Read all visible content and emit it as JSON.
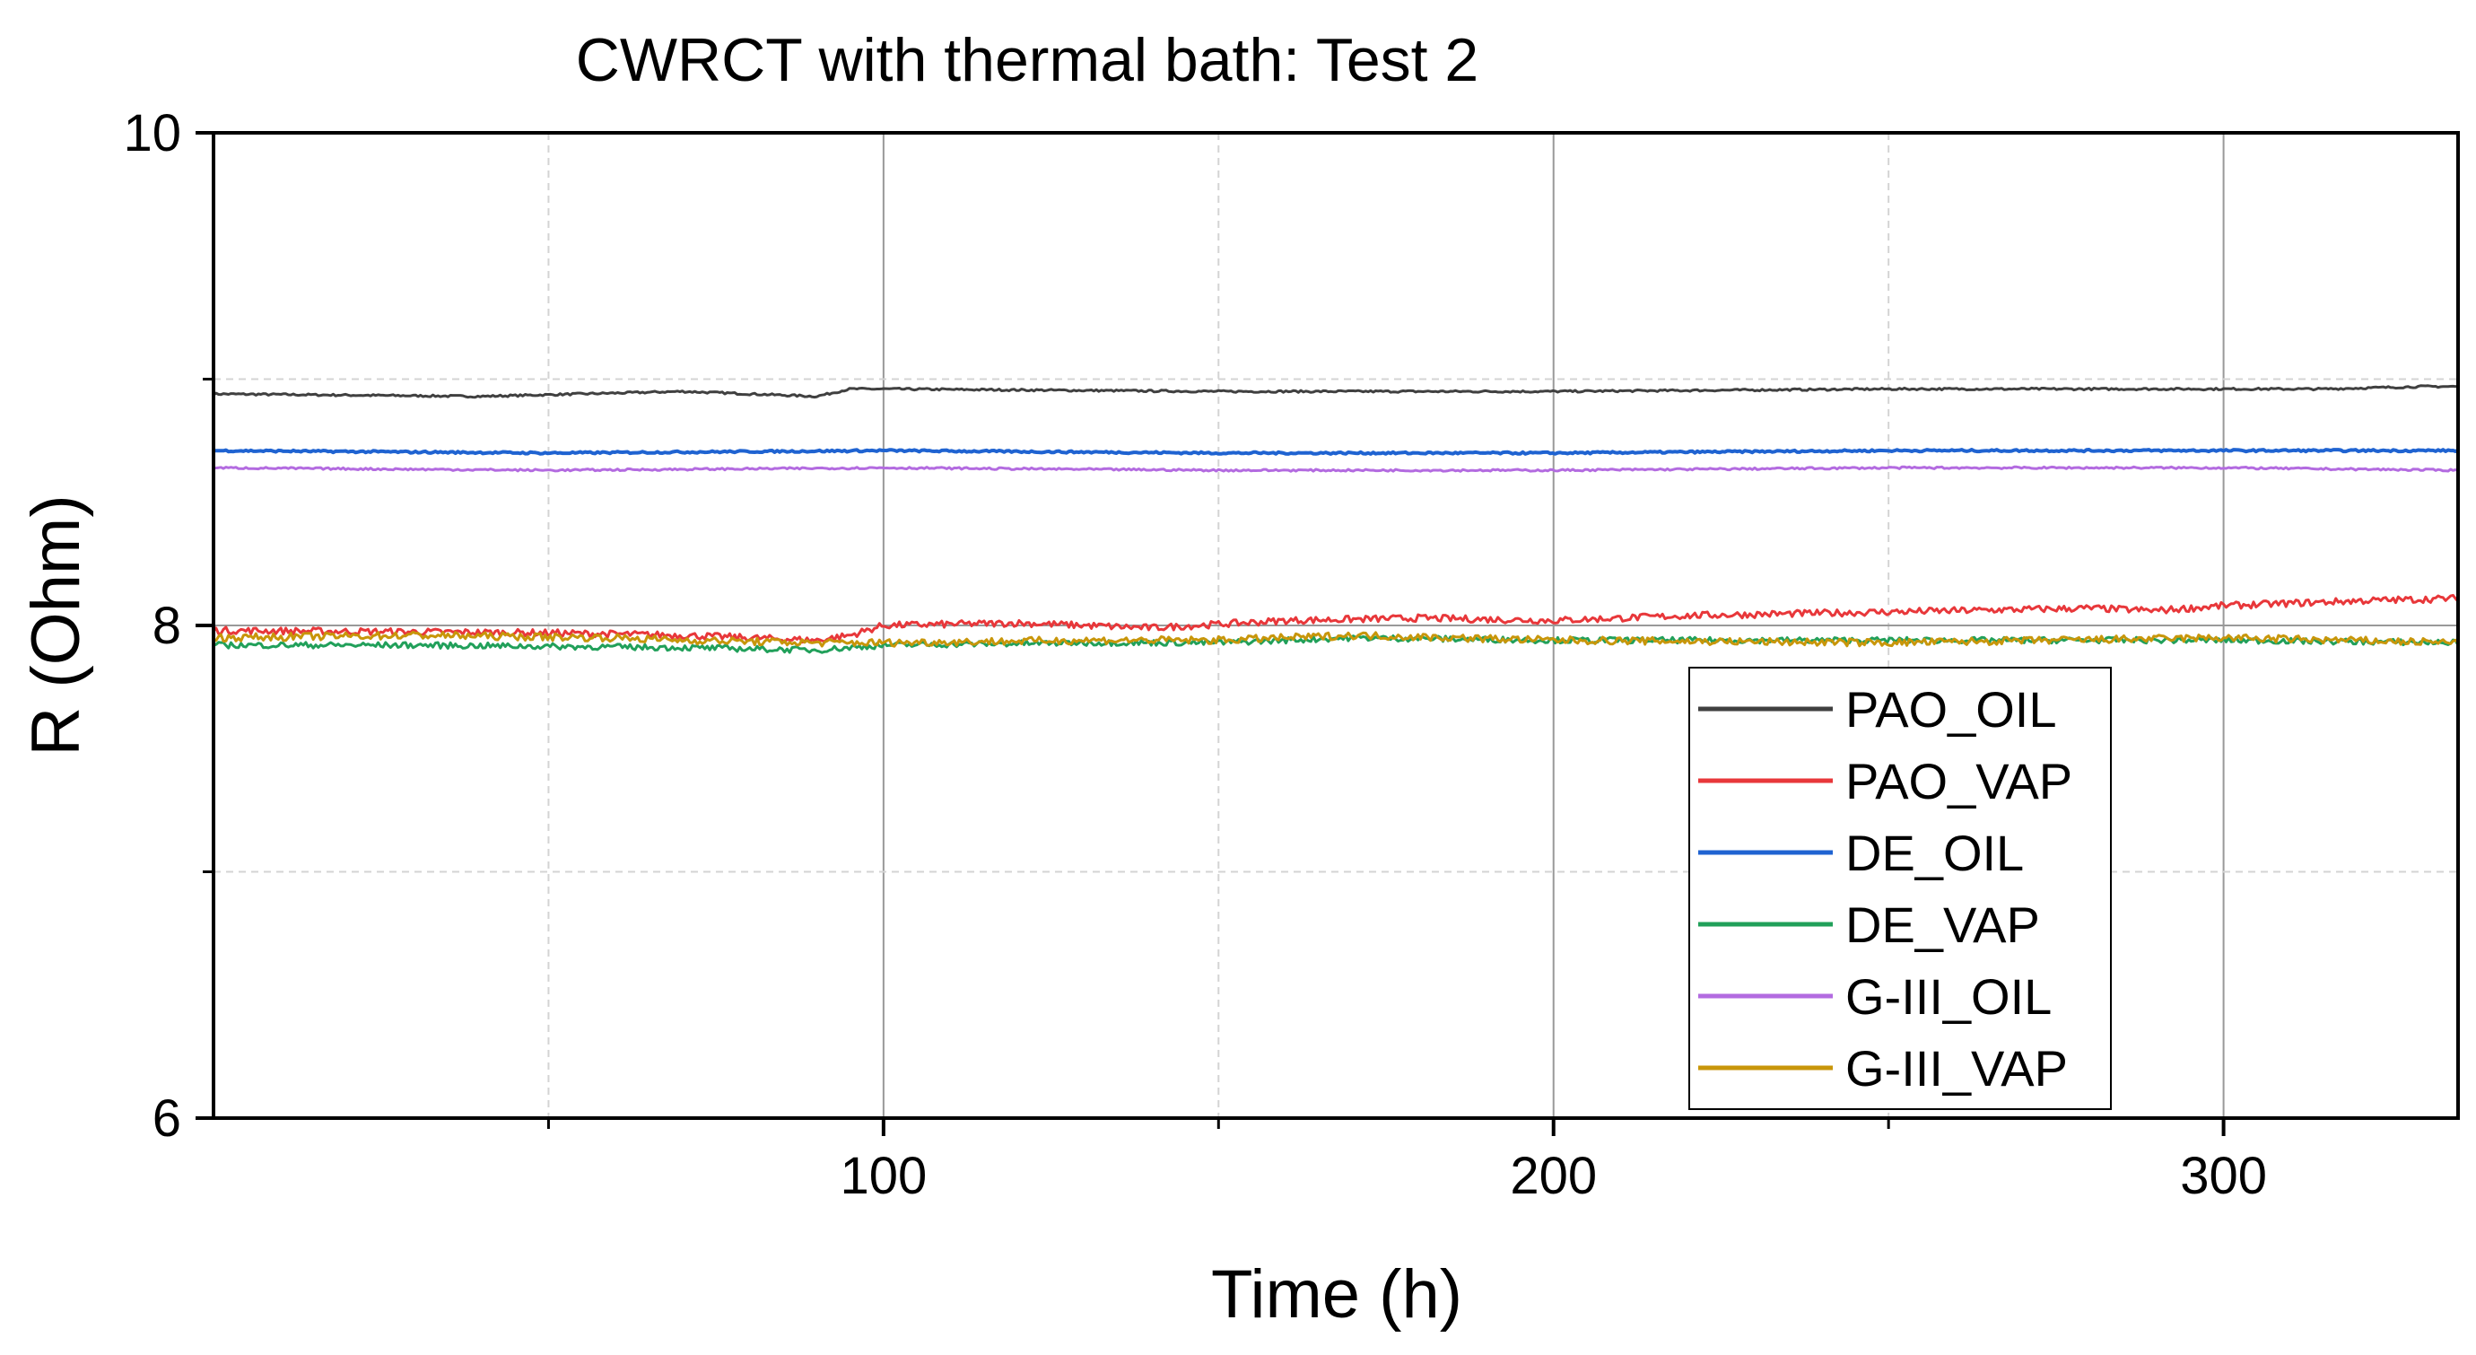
{
  "chart_data": {
    "type": "line",
    "title": "CWRCT with thermal bath: Test 2",
    "xlabel": "Time (h)",
    "ylabel": "R (Ohm)",
    "xlim": [
      0,
      335
    ],
    "ylim": [
      6,
      10
    ],
    "xticks": [
      100,
      200,
      300
    ],
    "yticks": [
      6,
      8,
      10
    ],
    "grid": true,
    "legend_position": "bottom-right",
    "series": [
      {
        "name": "PAO_OIL",
        "color": "#404040",
        "x": [
          0,
          40,
          70,
          90,
          95,
          100,
          150,
          200,
          250,
          300,
          315,
          330,
          335
        ],
        "y": [
          8.94,
          8.93,
          8.95,
          8.93,
          8.96,
          8.96,
          8.95,
          8.95,
          8.96,
          8.96,
          8.96,
          8.97,
          8.97
        ]
      },
      {
        "name": "PAO_VAP",
        "color": "#e8373a",
        "x": [
          0,
          50,
          70,
          90,
          95,
          100,
          120,
          140,
          160,
          180,
          200,
          220,
          240,
          260,
          280,
          290,
          300,
          320,
          335
        ],
        "y": [
          7.98,
          7.97,
          7.96,
          7.94,
          7.96,
          8.0,
          8.01,
          7.99,
          8.02,
          8.03,
          8.02,
          8.04,
          8.05,
          8.06,
          8.07,
          8.06,
          8.08,
          8.1,
          8.11
        ]
      },
      {
        "name": "DE_OIL",
        "color": "#1f63d1",
        "x": [
          0,
          50,
          100,
          150,
          200,
          250,
          300,
          335
        ],
        "y": [
          8.71,
          8.7,
          8.71,
          8.7,
          8.7,
          8.71,
          8.71,
          8.71
        ]
      },
      {
        "name": "DE_VAP",
        "color": "#21a05a",
        "x": [
          0,
          30,
          70,
          90,
          100,
          130,
          150,
          170,
          200,
          250,
          300,
          335
        ],
        "y": [
          7.92,
          7.92,
          7.91,
          7.9,
          7.92,
          7.93,
          7.93,
          7.95,
          7.94,
          7.94,
          7.94,
          7.93
        ]
      },
      {
        "name": "G-III_OIL",
        "color": "#b36be0",
        "x": [
          0,
          50,
          100,
          150,
          200,
          250,
          300,
          335
        ],
        "y": [
          8.64,
          8.63,
          8.64,
          8.63,
          8.63,
          8.64,
          8.64,
          8.63
        ]
      },
      {
        "name": "G-III_VAP",
        "color": "#c8960a",
        "x": [
          0,
          30,
          60,
          70,
          90,
          100,
          130,
          150,
          170,
          200,
          250,
          300,
          335
        ],
        "y": [
          7.95,
          7.96,
          7.95,
          7.94,
          7.93,
          7.93,
          7.94,
          7.94,
          7.96,
          7.94,
          7.93,
          7.95,
          7.93
        ]
      }
    ]
  }
}
